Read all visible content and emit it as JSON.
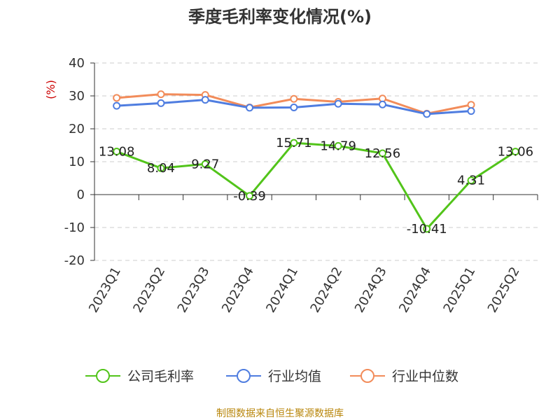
{
  "source": "制图数据来自恒生聚源数据库",
  "chart_data": {
    "type": "line",
    "title": "季度毛利率变化情况(%)",
    "ylabel": "(%)",
    "xlabel": "",
    "ylim": [
      -20,
      40
    ],
    "yticks": [
      40,
      30,
      20,
      10,
      0,
      -10,
      -20
    ],
    "grid": true,
    "legend_position": "bottom",
    "categories": [
      "2023Q1",
      "2023Q2",
      "2023Q3",
      "2023Q4",
      "2024Q1",
      "2024Q2",
      "2024Q3",
      "2024Q4",
      "2025Q1",
      "2025Q2"
    ],
    "series": [
      {
        "name": "公司毛利率",
        "color": "#52c41a",
        "values": [
          13.08,
          8.04,
          9.27,
          -0.39,
          15.71,
          14.79,
          12.56,
          -10.41,
          4.31,
          13.06
        ],
        "labels": [
          "13.08",
          "8.04",
          "9.27",
          "-0.39",
          "15.71",
          "14.79",
          "12.56",
          "-10.41",
          "4.31",
          "13.06"
        ]
      },
      {
        "name": "行业均值",
        "color": "#4f7de0",
        "values": [
          27.0,
          27.8,
          28.8,
          26.4,
          26.5,
          27.6,
          27.4,
          24.5,
          25.4,
          null
        ]
      },
      {
        "name": "行业中位数",
        "color": "#f28c5a",
        "values": [
          29.4,
          30.5,
          30.3,
          26.5,
          29.1,
          28.2,
          29.2,
          24.6,
          27.3,
          null
        ]
      }
    ]
  }
}
